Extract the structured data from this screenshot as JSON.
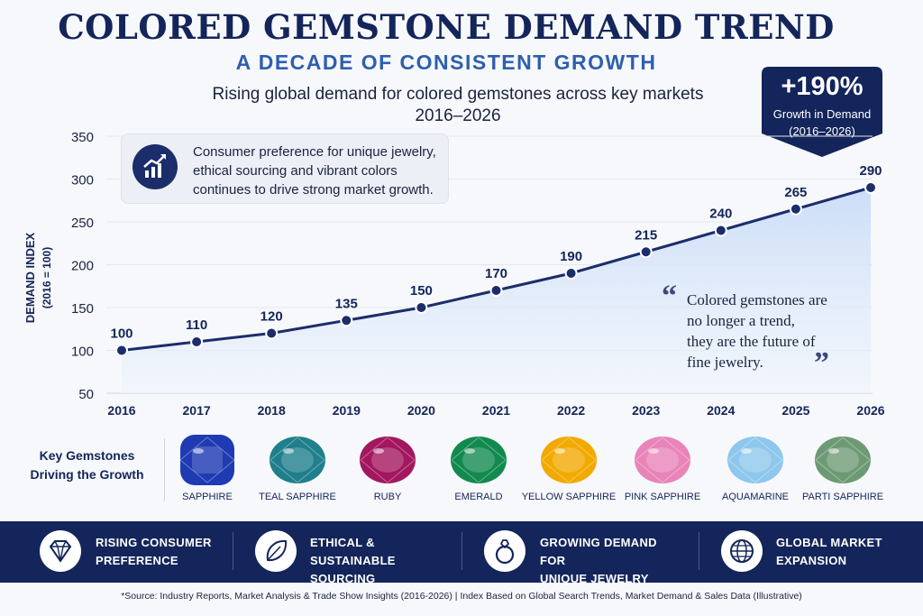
{
  "header": {
    "title": "COLORED GEMSTONE DEMAND TREND",
    "subtitle": "A DECADE OF CONSISTENT GROWTH",
    "description_line1": "Rising global demand for colored gemstones across key markets",
    "description_line2": "2016–2026"
  },
  "badge": {
    "value": "+190%",
    "line1": "Growth in Demand",
    "line2": "(2016–2026)"
  },
  "callout": {
    "line1": "Consumer preference for unique jewelry,",
    "line2": "ethical sourcing and vibrant colors",
    "line3": "continues to drive strong market growth."
  },
  "quote": {
    "line1": "Colored gemstones are",
    "line2": "no longer a trend,",
    "line3": "they are the future of",
    "line4": "fine jewelry.",
    "open_mark": "“",
    "close_mark": "”"
  },
  "chart_data": {
    "type": "area",
    "x": [
      "2016",
      "2017",
      "2018",
      "2019",
      "2020",
      "2021",
      "2022",
      "2023",
      "2024",
      "2025",
      "2026"
    ],
    "values": [
      100,
      110,
      120,
      135,
      150,
      170,
      190,
      215,
      240,
      265,
      290
    ],
    "value_labels": [
      "100",
      "110",
      "120",
      "135",
      "150",
      "170",
      "190",
      "215",
      "240",
      "265",
      "290"
    ],
    "ylabel_line1": "DEMAND INDEX",
    "ylabel_line2": "(2016 = 100)",
    "ylim": [
      50,
      350
    ],
    "yticks": [
      50,
      100,
      150,
      200,
      250,
      300,
      350
    ],
    "ytick_labels": [
      "50",
      "100",
      "150",
      "200",
      "250",
      "300",
      "350"
    ],
    "grid": true,
    "line_color": "#1b2d6b",
    "fill_color": "#dbe7fa"
  },
  "gems": {
    "label_line1": "Key Gemstones",
    "label_line2": "Driving the Growth",
    "items": [
      {
        "name": "SAPPHIRE",
        "color": "#1f3bb3",
        "shape": "cushion"
      },
      {
        "name": "TEAL SAPPHIRE",
        "color": "#1f7f8c",
        "shape": "oval"
      },
      {
        "name": "RUBY",
        "color": "#a3175e",
        "shape": "oval"
      },
      {
        "name": "EMERALD",
        "color": "#128a4f",
        "shape": "oval"
      },
      {
        "name": "YELLOW SAPPHIRE",
        "color": "#f2a900",
        "shape": "oval"
      },
      {
        "name": "PINK SAPPHIRE",
        "color": "#e884b8",
        "shape": "oval"
      },
      {
        "name": "AQUAMARINE",
        "color": "#8ec7ec",
        "shape": "oval"
      },
      {
        "name": "PARTI SAPPHIRE",
        "color": "#6d9a74",
        "shape": "oval"
      }
    ]
  },
  "footer": {
    "items": [
      {
        "line1": "RISING CONSUMER",
        "line2": "PREFERENCE",
        "icon": "diamond-icon"
      },
      {
        "line1": "ETHICAL & SUSTAINABLE",
        "line2": "SOURCING",
        "icon": "leaf-icon"
      },
      {
        "line1": "GROWING DEMAND FOR",
        "line2": "UNIQUE JEWELRY",
        "icon": "ring-icon"
      },
      {
        "line1": "GLOBAL MARKET",
        "line2": "EXPANSION",
        "icon": "globe-icon"
      }
    ]
  },
  "source": "*Source: Industry Reports, Market Analysis & Trade Show Insights (2016-2026) | Index Based on Global Search Trends, Market Demand & Sales Data (Illustrative)"
}
